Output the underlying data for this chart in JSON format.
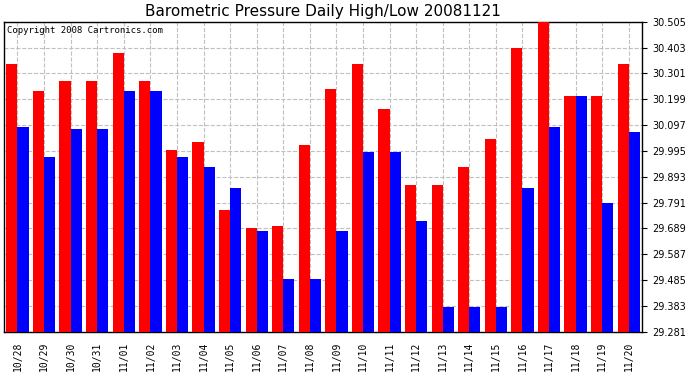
{
  "title": "Barometric Pressure Daily High/Low 20081121",
  "copyright": "Copyright 2008 Cartronics.com",
  "categories": [
    "10/28",
    "10/29",
    "10/30",
    "10/31",
    "11/01",
    "11/02",
    "11/03",
    "11/04",
    "11/05",
    "11/06",
    "11/07",
    "11/08",
    "11/09",
    "11/10",
    "11/11",
    "11/12",
    "11/13",
    "11/14",
    "11/15",
    "11/16",
    "11/17",
    "11/18",
    "11/19",
    "11/20"
  ],
  "highs": [
    30.34,
    30.23,
    30.27,
    30.27,
    30.38,
    30.27,
    30.0,
    30.03,
    29.76,
    29.69,
    29.7,
    30.02,
    30.24,
    30.34,
    30.16,
    29.86,
    29.86,
    29.93,
    30.04,
    30.4,
    30.52,
    30.21,
    30.21,
    30.34
  ],
  "lows": [
    30.09,
    29.97,
    30.08,
    30.08,
    30.23,
    30.23,
    29.97,
    29.93,
    29.85,
    29.68,
    29.49,
    29.49,
    29.68,
    29.99,
    29.99,
    29.72,
    29.38,
    29.38,
    29.38,
    29.85,
    30.09,
    30.21,
    29.79,
    30.07
  ],
  "bar_color_high": "#ff0000",
  "bar_color_low": "#0000ff",
  "background_color": "#ffffff",
  "plot_background": "#ffffff",
  "grid_color": "#c0c0c0",
  "title_color": "#000000",
  "yticks": [
    29.281,
    29.383,
    29.485,
    29.587,
    29.689,
    29.791,
    29.893,
    29.995,
    30.097,
    30.199,
    30.301,
    30.403,
    30.505
  ],
  "ymin": 29.281,
  "ymax": 30.505,
  "title_fontsize": 11,
  "tick_fontsize": 7,
  "copyright_fontsize": 6.5,
  "bar_width": 0.42
}
